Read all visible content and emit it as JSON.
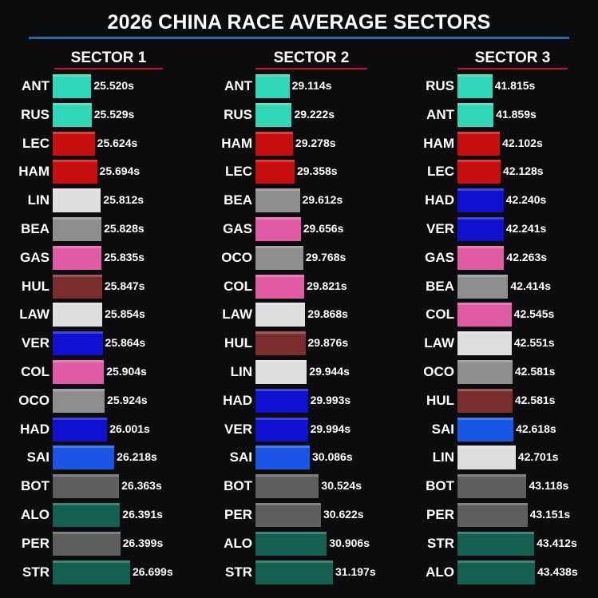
{
  "title": "2026 CHINA RACE AVERAGE SECTORS",
  "colors": {
    "ANT": "#2fd6b8",
    "RUS": "#2fd6b8",
    "LEC": "#c70d0d",
    "HAM": "#c70d0d",
    "LIN": "#dedede",
    "LAW": "#dedede",
    "BEA": "#8e8e8e",
    "OCO": "#8e8e8e",
    "GAS": "#e05aa4",
    "COL": "#e05aa4",
    "HUL": "#7b2c2c",
    "VER": "#1010d0",
    "HAD": "#1010d0",
    "SAI": "#1a56e6",
    "BOT": "#5e5e5e",
    "PER": "#5e5e5e",
    "ALO": "#125e4f",
    "STR": "#125e4f"
  },
  "chart_data": [
    {
      "type": "bar",
      "title": "SECTOR 1",
      "categories": [
        "ANT",
        "RUS",
        "LEC",
        "HAM",
        "LIN",
        "BEA",
        "GAS",
        "HUL",
        "LAW",
        "VER",
        "COL",
        "OCO",
        "HAD",
        "SAI",
        "BOT",
        "ALO",
        "PER",
        "STR"
      ],
      "values": [
        25.52,
        25.529,
        25.624,
        25.694,
        25.812,
        25.828,
        25.835,
        25.847,
        25.854,
        25.864,
        25.904,
        25.924,
        26.001,
        26.218,
        26.363,
        26.391,
        26.399,
        26.699
      ],
      "labels": [
        "25.520s",
        "25.529s",
        "25.624s",
        "25.694s",
        "25.812s",
        "25.828s",
        "25.835s",
        "25.847s",
        "25.854s",
        "25.864s",
        "25.904s",
        "25.924s",
        "26.001s",
        "26.218s",
        "26.363s",
        "26.391s",
        "26.399s",
        "26.699s"
      ],
      "xlim": [
        25.22,
        26.699
      ]
    },
    {
      "type": "bar",
      "title": "SECTOR 2",
      "categories": [
        "ANT",
        "RUS",
        "HAM",
        "LEC",
        "BEA",
        "GAS",
        "OCO",
        "COL",
        "LAW",
        "HUL",
        "LIN",
        "HAD",
        "VER",
        "SAI",
        "BOT",
        "PER",
        "ALO",
        "STR"
      ],
      "values": [
        29.114,
        29.222,
        29.278,
        29.358,
        29.612,
        29.656,
        29.768,
        29.821,
        29.868,
        29.876,
        29.944,
        29.993,
        29.994,
        30.086,
        30.524,
        30.622,
        30.906,
        31.197
      ],
      "labels": [
        "29.114s",
        "29.222s",
        "29.278s",
        "29.358s",
        "29.612s",
        "29.656s",
        "29.768s",
        "29.821s",
        "29.868s",
        "29.876s",
        "29.944s",
        "29.993s",
        "29.994s",
        "30.086s",
        "30.524s",
        "30.622s",
        "30.906s",
        "31.197s"
      ],
      "xlim": [
        28.86,
        31.197
      ]
    },
    {
      "type": "bar",
      "title": "SECTOR 3",
      "categories": [
        "RUS",
        "ANT",
        "HAM",
        "LEC",
        "HAD",
        "VER",
        "GAS",
        "BEA",
        "COL",
        "LAW",
        "OCO",
        "HUL",
        "SAI",
        "LIN",
        "BOT",
        "PER",
        "STR",
        "ALO"
      ],
      "values": [
        41.815,
        41.859,
        42.102,
        42.128,
        42.24,
        42.241,
        42.263,
        42.414,
        42.545,
        42.551,
        42.581,
        42.581,
        42.618,
        42.701,
        43.118,
        43.151,
        43.412,
        43.438
      ],
      "labels": [
        "41.815s",
        "41.859s",
        "42.102s",
        "42.128s",
        "42.240s",
        "42.241s",
        "42.263s",
        "42.414s",
        "42.545s",
        "42.551s",
        "42.581s",
        "42.581s",
        "42.618s",
        "42.701s",
        "43.118s",
        "43.151s",
        "43.412s",
        "43.438s"
      ],
      "xlim": [
        41.58,
        43.438
      ]
    }
  ]
}
